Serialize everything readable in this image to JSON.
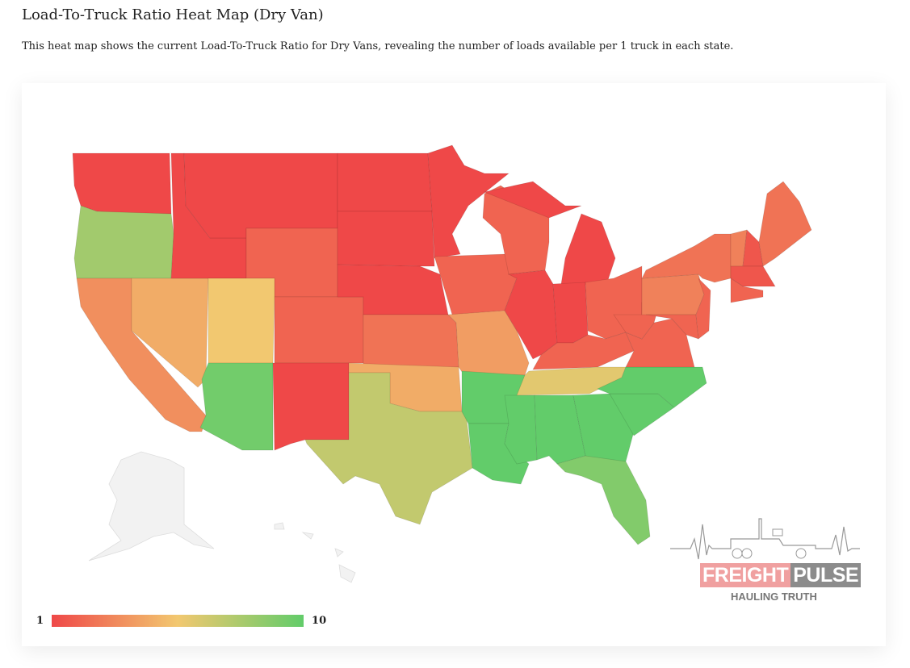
{
  "header": {
    "title": "Load-To-Truck Ratio Heat Map (Dry Van)",
    "description": "This heat map shows the current Load-To-Truck Ratio for Dry Vans, revealing the number of loads available per 1 truck in each state."
  },
  "legend": {
    "min_label": "1",
    "max_label": "10",
    "min": 1,
    "max": 10,
    "colors": {
      "low": "#ef4848",
      "mid": "#f2c870",
      "high": "#62cc6a",
      "nodata": "#f2f2f2"
    }
  },
  "logo": {
    "brand_part1": "FREIGHT",
    "brand_part2": "PULSE",
    "tagline": "HAULING TRUTH"
  },
  "chart_data": {
    "type": "choropleth",
    "title": "Load-To-Truck Ratio Heat Map (Dry Van)",
    "scale": [
      1,
      10
    ],
    "states": [
      {
        "code": "WA",
        "value": 1
      },
      {
        "code": "OR",
        "value": 8
      },
      {
        "code": "CA",
        "value": 3.5
      },
      {
        "code": "NV",
        "value": 4.5
      },
      {
        "code": "ID",
        "value": 1
      },
      {
        "code": "MT",
        "value": 1
      },
      {
        "code": "WY",
        "value": 2
      },
      {
        "code": "UT",
        "value": 5.5
      },
      {
        "code": "CO",
        "value": 2
      },
      {
        "code": "AZ",
        "value": 9.5
      },
      {
        "code": "NM",
        "value": 1
      },
      {
        "code": "ND",
        "value": 1
      },
      {
        "code": "SD",
        "value": 1
      },
      {
        "code": "NE",
        "value": 1
      },
      {
        "code": "KS",
        "value": 2.5
      },
      {
        "code": "OK",
        "value": 4.5
      },
      {
        "code": "TX",
        "value": 7
      },
      {
        "code": "MN",
        "value": 1
      },
      {
        "code": "IA",
        "value": 2
      },
      {
        "code": "MO",
        "value": 4
      },
      {
        "code": "AR",
        "value": 10
      },
      {
        "code": "LA",
        "value": 10
      },
      {
        "code": "WI",
        "value": 2
      },
      {
        "code": "IL",
        "value": 1
      },
      {
        "code": "MI",
        "value": 1
      },
      {
        "code": "IN",
        "value": 1
      },
      {
        "code": "OH",
        "value": 2
      },
      {
        "code": "KY",
        "value": 2
      },
      {
        "code": "TN",
        "value": 6
      },
      {
        "code": "MS",
        "value": 10
      },
      {
        "code": "AL",
        "value": 10
      },
      {
        "code": "GA",
        "value": 10
      },
      {
        "code": "FL",
        "value": 9
      },
      {
        "code": "SC",
        "value": 10
      },
      {
        "code": "NC",
        "value": 10
      },
      {
        "code": "VA",
        "value": 2
      },
      {
        "code": "WV",
        "value": 2
      },
      {
        "code": "PA",
        "value": 3
      },
      {
        "code": "NY",
        "value": 2.5
      },
      {
        "code": "MD",
        "value": 2
      },
      {
        "code": "NJ",
        "value": 2
      },
      {
        "code": "VT",
        "value": 3
      },
      {
        "code": "NH",
        "value": 1.5
      },
      {
        "code": "ME",
        "value": 2.5
      },
      {
        "code": "MA",
        "value": 1.5
      },
      {
        "code": "CT",
        "value": 2
      },
      {
        "code": "AK",
        "value": null
      },
      {
        "code": "HI",
        "value": null
      }
    ]
  }
}
